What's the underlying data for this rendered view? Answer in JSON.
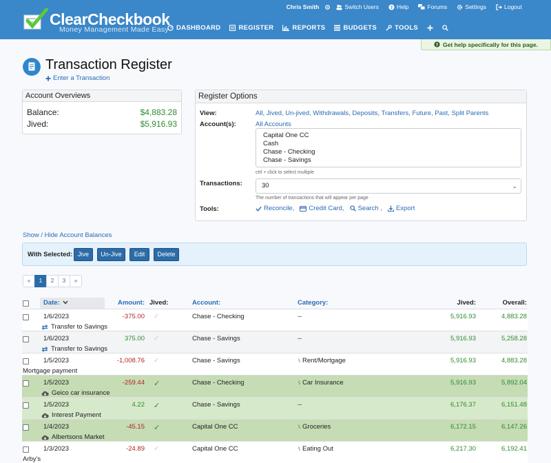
{
  "header": {
    "logo_title": "ClearCheckbook",
    "logo_tagline": "Money Management Made Easy",
    "top_menu": [
      {
        "label": "Chris Smith",
        "icon": "user-icon"
      },
      {
        "label": "",
        "icon": "gear-small-icon"
      },
      {
        "label": "Switch Users",
        "icon": "switch-users-icon"
      },
      {
        "label": "Help",
        "icon": "help-icon"
      },
      {
        "label": "Forums",
        "icon": "forums-icon"
      },
      {
        "label": "Settings",
        "icon": "settings-icon"
      },
      {
        "label": "Logout",
        "icon": "logout-icon"
      }
    ],
    "nav": [
      {
        "label": "DASHBOARD",
        "icon": "dashboard-icon"
      },
      {
        "label": "REGISTER",
        "icon": "register-icon",
        "active": true
      },
      {
        "label": "REPORTS",
        "icon": "reports-icon"
      },
      {
        "label": "BUDGETS",
        "icon": "budgets-icon"
      },
      {
        "label": "TOOLS",
        "icon": "tools-icon"
      },
      {
        "label": "",
        "icon": "plus-icon"
      },
      {
        "label": "",
        "icon": "search-icon"
      }
    ],
    "help_bar": "Get help specifically for this page."
  },
  "page": {
    "title": "Transaction Register",
    "enter_link": "Enter a Transaction"
  },
  "account_overviews": {
    "title": "Account Overviews",
    "balance_label": "Balance:",
    "balance_value": "$4,883.28",
    "jived_label": "Jived:",
    "jived_value": "$5,916.93"
  },
  "register_options": {
    "title": "Register Options",
    "view_label": "View:",
    "view_links": "All, Jived, Un-jived, Withdrawals, Deposits, Transfers, Future, Past, Split Parents",
    "accounts_label": "Account(s):",
    "all_accounts": "All Accounts",
    "accounts": [
      "Capital One CC",
      "Cash",
      "Chase - Checking",
      "Chase - Savings"
    ],
    "accounts_hint": "ctrl + click to select multiple",
    "transactions_label": "Transactions:",
    "transactions_value": "30",
    "transactions_hint": "The number of transactions that will appear per page",
    "tools_label": "Tools:",
    "tools": [
      {
        "label": "Reconcile,",
        "icon": "checkmark-icon"
      },
      {
        "label": "Credit Card,",
        "icon": "credit-card-icon"
      },
      {
        "label": "Search ,",
        "icon": "search-icon"
      },
      {
        "label": "Export",
        "icon": "download-icon"
      }
    ]
  },
  "show_hide": "Show / Hide Account Balances",
  "with_selected": {
    "label": "With Selected:",
    "buttons": [
      "Jive",
      "Un-Jive",
      "Edit",
      "Delete"
    ]
  },
  "pagination": [
    "«",
    "1",
    "2",
    "3",
    "»"
  ],
  "table": {
    "headers": {
      "date": "Date:",
      "amount": "Amount:",
      "jived": "Jived:",
      "account": "Account:",
      "category": "Category:",
      "jived_bal": "Jived:",
      "overall": "Overall:"
    },
    "rows": [
      {
        "date": "1/6/2023",
        "amount": "-375.00",
        "sign": "neg",
        "jived": false,
        "account": "Chase - Checking",
        "category": "--",
        "split": false,
        "description": "Transfer to Savings",
        "desc_icon": "transfer-icon",
        "jived_bal": "5,916.93",
        "overall": "4,883.28",
        "style": "plain"
      },
      {
        "date": "1/6/2023",
        "amount": "375.00",
        "sign": "pos",
        "jived": false,
        "account": "Chase - Savings",
        "category": "--",
        "split": false,
        "description": "Transfer to Savings",
        "desc_icon": "transfer-icon",
        "jived_bal": "5,916.93",
        "overall": "5,258.28",
        "style": "alt"
      },
      {
        "date": "1/5/2023",
        "amount": "-1,008.76",
        "sign": "neg",
        "jived": false,
        "account": "Chase - Savings",
        "category": "Rent/Mortgage",
        "split": true,
        "description": "Mortgage payment",
        "desc_icon": "",
        "jived_bal": "5,916.93",
        "overall": "4,883.28",
        "style": "plain"
      },
      {
        "date": "1/5/2023",
        "amount": "-259.44",
        "sign": "neg",
        "jived": true,
        "account": "Chase - Checking",
        "category": "Car Insurance",
        "split": true,
        "description": "Geico car insurance",
        "desc_icon": "cloud-download-icon",
        "jived_bal": "5,916.93",
        "overall": "5,892.04",
        "style": "jived2"
      },
      {
        "date": "1/5/2023",
        "amount": "4.22",
        "sign": "pos",
        "jived": true,
        "account": "Chase - Savings",
        "category": "--",
        "split": false,
        "description": "Interest Payment",
        "desc_icon": "cloud-download-icon",
        "jived_bal": "6,176.37",
        "overall": "6,151.48",
        "style": "jived"
      },
      {
        "date": "1/4/2023",
        "amount": "-45.15",
        "sign": "neg",
        "jived": true,
        "account": "Capital One CC",
        "category": "Groceries",
        "split": true,
        "description": "Albertsons Market",
        "desc_icon": "cloud-download-icon",
        "jived_bal": "6,172.15",
        "overall": "6,147.26",
        "style": "jived2"
      },
      {
        "date": "1/3/2023",
        "amount": "-24.89",
        "sign": "neg",
        "jived": false,
        "account": "Capital One CC",
        "category": "Eating Out",
        "split": true,
        "description": "Arby's",
        "desc_icon": "",
        "jived_bal": "6,217.30",
        "overall": "6,192.41",
        "style": "plain"
      }
    ]
  }
}
